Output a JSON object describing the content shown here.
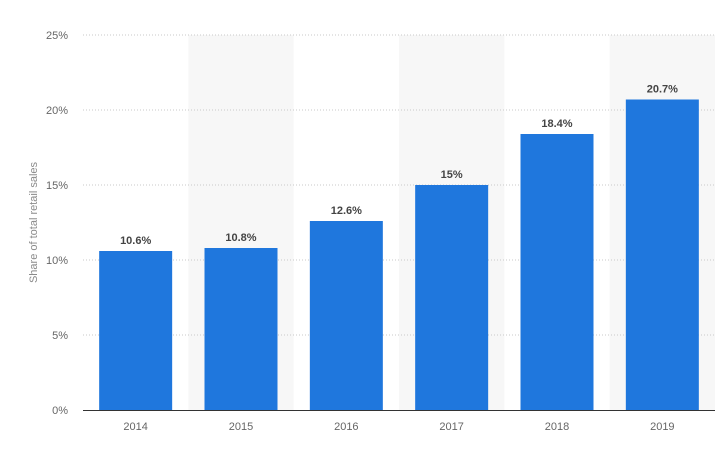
{
  "chart_data": {
    "type": "bar",
    "categories": [
      "2014",
      "2015",
      "2016",
      "2017",
      "2018",
      "2019"
    ],
    "values": [
      10.6,
      10.8,
      12.6,
      15,
      18.4,
      20.7
    ],
    "value_labels": [
      "10.6%",
      "10.8%",
      "12.6%",
      "15%",
      "18.4%",
      "20.7%"
    ],
    "title": "",
    "xlabel": "",
    "ylabel": "Share of total retail sales",
    "ylim": [
      0,
      25
    ],
    "yticks": [
      0,
      5,
      10,
      15,
      20,
      25
    ],
    "ytick_labels": [
      "0%",
      "5%",
      "10%",
      "15%",
      "20%",
      "25%"
    ],
    "grid": true,
    "alternating_column_bands": true,
    "colors": {
      "bar": "#1f77dd",
      "band": "#f7f7f7",
      "grid": "#c8c8c8",
      "axis": "#333333"
    }
  }
}
